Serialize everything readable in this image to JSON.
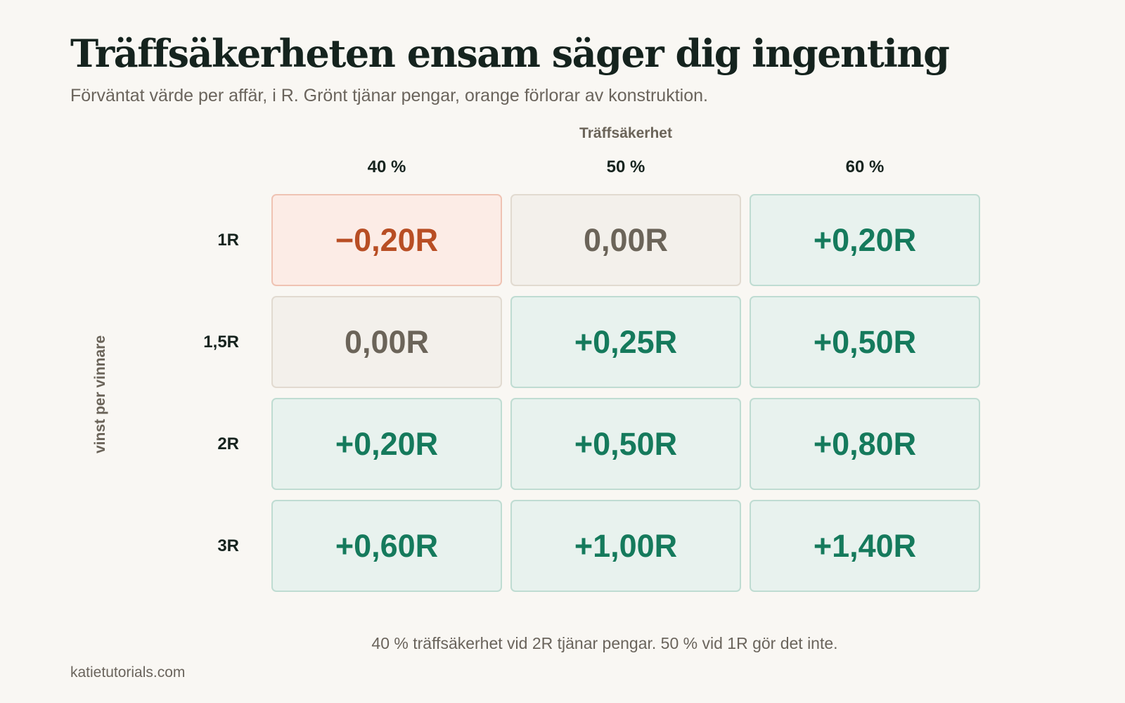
{
  "header": {
    "title": "Träffsäkerheten ensam säger dig ingenting",
    "subtitle": "Förväntat värde per affär, i R. Grönt tjänar pengar, orange förlorar av konstruktion."
  },
  "chart_data": {
    "type": "heatmap",
    "title": "Träffsäkerheten ensam säger dig ingenting",
    "subtitle": "Förväntat värde per affär, i R. Grönt tjänar pengar, orange förlorar av konstruktion.",
    "xlabel": "Träffsäkerhet",
    "ylabel": "vinst per vinnare",
    "columns": [
      "40 %",
      "50 %",
      "60 %"
    ],
    "rows": [
      "1R",
      "1,5R",
      "2R",
      "3R"
    ],
    "values": [
      [
        -0.2,
        0.0,
        0.2
      ],
      [
        0.0,
        0.25,
        0.5
      ],
      [
        0.2,
        0.5,
        0.8
      ],
      [
        0.6,
        1.0,
        1.4
      ]
    ],
    "labels": [
      [
        "−0,20R",
        "0,00R",
        "+0,20R"
      ],
      [
        "0,00R",
        "+0,25R",
        "+0,50R"
      ],
      [
        "+0,20R",
        "+0,50R",
        "+0,80R"
      ],
      [
        "+0,60R",
        "+1,00R",
        "+1,40R"
      ]
    ],
    "colors": {
      "positive": "#157a5c",
      "negative": "#b84e24",
      "neutral": "#6b6459"
    }
  },
  "footer": {
    "caption": "40 % träffsäkerhet vid 2R tjänar pengar. 50 % vid 1R gör det inte.",
    "source": "katietutorials.com"
  }
}
